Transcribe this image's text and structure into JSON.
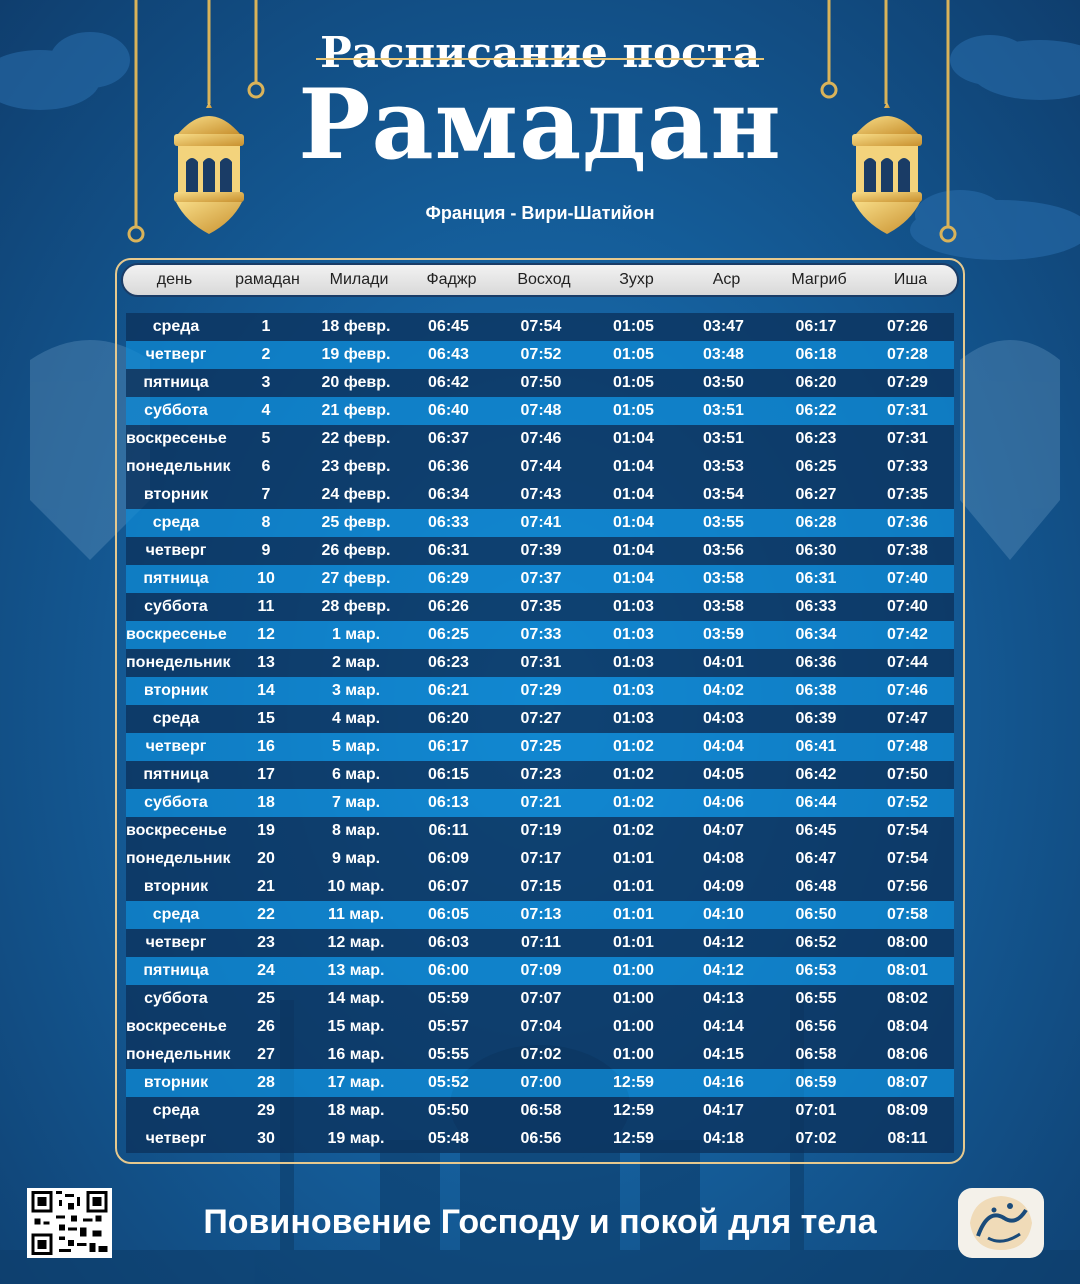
{
  "header": {
    "title_top": "Расписание поста",
    "title_main": "Рамадан",
    "location": "Франция - Вири-Шатийон"
  },
  "columns": [
    "день",
    "рамадан",
    "Милади",
    "Фаджр",
    "Восход",
    "Зухр",
    "Аср",
    "Магриб",
    "Иша"
  ],
  "rows": [
    [
      "среда",
      "1",
      "18 февр.",
      "06:45",
      "07:54",
      "01:05",
      "03:47",
      "06:17",
      "07:26"
    ],
    [
      "четверг",
      "2",
      "19 февр.",
      "06:43",
      "07:52",
      "01:05",
      "03:48",
      "06:18",
      "07:28"
    ],
    [
      "пятница",
      "3",
      "20 февр.",
      "06:42",
      "07:50",
      "01:05",
      "03:50",
      "06:20",
      "07:29"
    ],
    [
      "суббота",
      "4",
      "21 февр.",
      "06:40",
      "07:48",
      "01:05",
      "03:51",
      "06:22",
      "07:31"
    ],
    [
      "воскресенье",
      "5",
      "22 февр.",
      "06:37",
      "07:46",
      "01:04",
      "03:51",
      "06:23",
      "07:31"
    ],
    [
      "понедельник",
      "6",
      "23 февр.",
      "06:36",
      "07:44",
      "01:04",
      "03:53",
      "06:25",
      "07:33"
    ],
    [
      "вторник",
      "7",
      "24 февр.",
      "06:34",
      "07:43",
      "01:04",
      "03:54",
      "06:27",
      "07:35"
    ],
    [
      "среда",
      "8",
      "25 февр.",
      "06:33",
      "07:41",
      "01:04",
      "03:55",
      "06:28",
      "07:36"
    ],
    [
      "четверг",
      "9",
      "26 февр.",
      "06:31",
      "07:39",
      "01:04",
      "03:56",
      "06:30",
      "07:38"
    ],
    [
      "пятница",
      "10",
      "27 февр.",
      "06:29",
      "07:37",
      "01:04",
      "03:58",
      "06:31",
      "07:40"
    ],
    [
      "суббота",
      "11",
      "28 февр.",
      "06:26",
      "07:35",
      "01:03",
      "03:58",
      "06:33",
      "07:40"
    ],
    [
      "воскресенье",
      "12",
      "1 мар.",
      "06:25",
      "07:33",
      "01:03",
      "03:59",
      "06:34",
      "07:42"
    ],
    [
      "понедельник",
      "13",
      "2 мар.",
      "06:23",
      "07:31",
      "01:03",
      "04:01",
      "06:36",
      "07:44"
    ],
    [
      "вторник",
      "14",
      "3 мар.",
      "06:21",
      "07:29",
      "01:03",
      "04:02",
      "06:38",
      "07:46"
    ],
    [
      "среда",
      "15",
      "4 мар.",
      "06:20",
      "07:27",
      "01:03",
      "04:03",
      "06:39",
      "07:47"
    ],
    [
      "четверг",
      "16",
      "5 мар.",
      "06:17",
      "07:25",
      "01:02",
      "04:04",
      "06:41",
      "07:48"
    ],
    [
      "пятница",
      "17",
      "6 мар.",
      "06:15",
      "07:23",
      "01:02",
      "04:05",
      "06:42",
      "07:50"
    ],
    [
      "суббота",
      "18",
      "7 мар.",
      "06:13",
      "07:21",
      "01:02",
      "04:06",
      "06:44",
      "07:52"
    ],
    [
      "воскресенье",
      "19",
      "8 мар.",
      "06:11",
      "07:19",
      "01:02",
      "04:07",
      "06:45",
      "07:54"
    ],
    [
      "понедельник",
      "20",
      "9 мар.",
      "06:09",
      "07:17",
      "01:01",
      "04:08",
      "06:47",
      "07:54"
    ],
    [
      "вторник",
      "21",
      "10 мар.",
      "06:07",
      "07:15",
      "01:01",
      "04:09",
      "06:48",
      "07:56"
    ],
    [
      "среда",
      "22",
      "11 мар.",
      "06:05",
      "07:13",
      "01:01",
      "04:10",
      "06:50",
      "07:58"
    ],
    [
      "четверг",
      "23",
      "12 мар.",
      "06:03",
      "07:11",
      "01:01",
      "04:12",
      "06:52",
      "08:00"
    ],
    [
      "пятница",
      "24",
      "13 мар.",
      "06:00",
      "07:09",
      "01:00",
      "04:12",
      "06:53",
      "08:01"
    ],
    [
      "суббота",
      "25",
      "14 мар.",
      "05:59",
      "07:07",
      "01:00",
      "04:13",
      "06:55",
      "08:02"
    ],
    [
      "воскресенье",
      "26",
      "15 мар.",
      "05:57",
      "07:04",
      "01:00",
      "04:14",
      "06:56",
      "08:04"
    ],
    [
      "понедельник",
      "27",
      "16 мар.",
      "05:55",
      "07:02",
      "01:00",
      "04:15",
      "06:58",
      "08:06"
    ],
    [
      "вторник",
      "28",
      "17 мар.",
      "05:52",
      "07:00",
      "12:59",
      "04:16",
      "06:59",
      "08:07"
    ],
    [
      "среда",
      "29",
      "18 мар.",
      "05:50",
      "06:58",
      "12:59",
      "04:17",
      "07:01",
      "08:09"
    ],
    [
      "четверг",
      "30",
      "19 мар.",
      "05:48",
      "06:56",
      "12:59",
      "04:18",
      "07:02",
      "08:11"
    ]
  ],
  "row_shades": [
    "dark",
    "light",
    "dark",
    "light",
    "dark",
    "dark",
    "dark",
    "light",
    "dark",
    "light",
    "dark",
    "light",
    "dark",
    "light",
    "dark",
    "light",
    "dark",
    "light",
    "dark",
    "dark",
    "dark",
    "light",
    "dark",
    "light",
    "dark",
    "dark",
    "dark",
    "light",
    "dark",
    "dark"
  ],
  "footer": {
    "tagline": "Повиновение Господу и покой для тела"
  },
  "colors": {
    "accent_gold": "#e6c98e",
    "row_dark": "#0b325c",
    "row_light": "#0e8bd6",
    "background": "#155f9c"
  },
  "icons": [
    "lantern-icon",
    "qr-code-icon",
    "app-logo-icon"
  ]
}
